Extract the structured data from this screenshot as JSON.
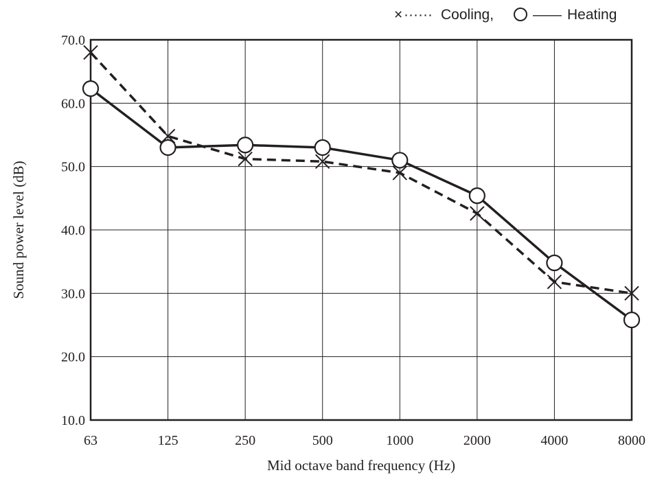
{
  "chart_data": {
    "type": "line",
    "title": "",
    "xlabel": "Mid octave band frequency (Hz)",
    "ylabel": "Sound power level (dB)",
    "categories": [
      "63",
      "125",
      "250",
      "500",
      "1000",
      "2000",
      "4000",
      "8000"
    ],
    "y_ticks": [
      "10.0",
      "20.0",
      "30.0",
      "40.0",
      "50.0",
      "60.0",
      "70.0"
    ],
    "ylim": [
      10,
      70
    ],
    "grid": true,
    "legend_position": "top-right",
    "legend": {
      "cooling_marker": "×",
      "cooling_line": "······",
      "cooling_label": "Cooling,",
      "heating_line": "——",
      "heating_label": "Heating"
    },
    "series": [
      {
        "name": "Cooling",
        "marker": "x",
        "line": "dashed",
        "values": [
          68.0,
          54.8,
          51.2,
          50.8,
          49.0,
          42.6,
          31.8,
          30.0
        ]
      },
      {
        "name": "Heating",
        "marker": "circle",
        "line": "solid",
        "values": [
          62.3,
          53.0,
          53.4,
          53.0,
          51.0,
          45.4,
          34.8,
          25.8
        ]
      }
    ],
    "colors": {
      "line": "#231f20",
      "grid": "#231f20",
      "background": "#ffffff"
    }
  }
}
